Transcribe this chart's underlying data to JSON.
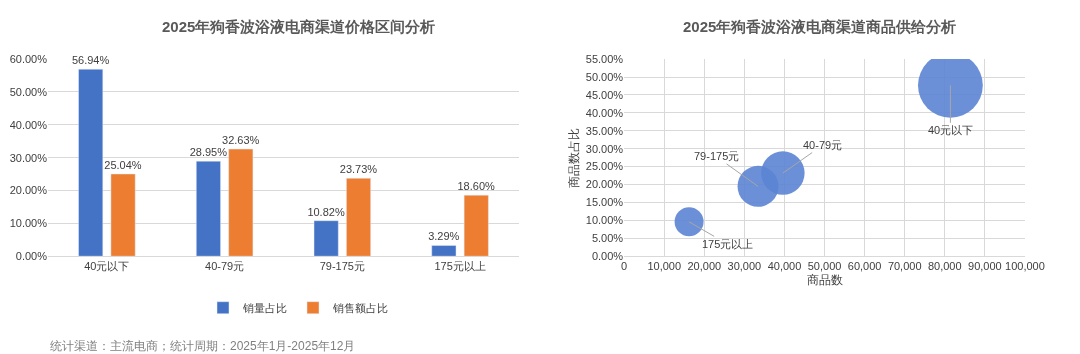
{
  "chart_data": [
    {
      "type": "bar",
      "title": "2025年狗香波浴液电商渠道价格区间分析",
      "categories": [
        "40元以下",
        "40-79元",
        "79-175元",
        "175元以上"
      ],
      "series": [
        {
          "name": "销量占比",
          "color": "#4472c4",
          "values": [
            56.94,
            28.95,
            10.82,
            3.29
          ],
          "value_labels": [
            "56.94%",
            "28.95%",
            "10.82%",
            "3.29%"
          ]
        },
        {
          "name": "销售额占比",
          "color": "#ed7d31",
          "values": [
            25.04,
            32.63,
            23.73,
            18.6
          ],
          "value_labels": [
            "25.04%",
            "32.63%",
            "23.73%",
            "18.60%"
          ]
        }
      ],
      "ylim": [
        0,
        60
      ],
      "yticks": [
        {
          "value": 0,
          "label": "0.00%"
        },
        {
          "value": 10,
          "label": "10.00%"
        },
        {
          "value": 20,
          "label": "20.00%"
        },
        {
          "value": 30,
          "label": "30.00%"
        },
        {
          "value": 40,
          "label": "40.00%"
        },
        {
          "value": 50,
          "label": "50.00%"
        },
        {
          "value": 60,
          "label": "60.00%"
        }
      ],
      "grid": "y",
      "legend": "bottom",
      "annotations": [
        "统计渠道：主流电商；统计周期：2025年1月-2025年12月"
      ]
    },
    {
      "type": "bubble",
      "title": "2025年狗香波浴液电商渠道商品供给分析",
      "xlabel": "商品数",
      "ylabel": "商品数占比",
      "x": [
        81400,
        39600,
        33400,
        16200
      ],
      "values": [
        47.7,
        23.2,
        19.5,
        9.6
      ],
      "sizes": [
        1,
        0.45,
        0.4,
        0.2
      ],
      "color": "#5b84d3",
      "xlim": [
        0,
        100000
      ],
      "xticks": [
        0,
        {
          "value": 10000,
          "label": "10,000"
        },
        {
          "value": 20000,
          "label": "20,000"
        },
        {
          "value": 30000,
          "label": "30,000"
        },
        {
          "value": 40000,
          "label": "40,000"
        },
        {
          "value": 50000,
          "label": "50,000"
        },
        {
          "value": 60000,
          "label": "60,000"
        },
        {
          "value": 70000,
          "label": "70,000"
        },
        {
          "value": 80000,
          "label": "80,000"
        },
        {
          "value": 90000,
          "label": "90,000"
        },
        {
          "value": 100000,
          "label": "100,000"
        }
      ],
      "ylim": [
        0,
        55
      ],
      "yticks": [
        {
          "value": 0,
          "label": "0.00%"
        },
        {
          "value": 5,
          "label": "5.00%"
        },
        {
          "value": 10,
          "label": "10.00%"
        },
        {
          "value": 15,
          "label": "15.00%"
        },
        {
          "value": 20,
          "label": "20.00%"
        },
        {
          "value": 25,
          "label": "25.00%"
        },
        {
          "value": 30,
          "label": "30.00%"
        },
        {
          "value": 35,
          "label": "35.00%"
        },
        {
          "value": 40,
          "label": "40.00%"
        },
        {
          "value": 45,
          "label": "45.00%"
        },
        {
          "value": 50,
          "label": "50.00%"
        },
        {
          "value": 55,
          "label": "55.00%"
        }
      ],
      "grid": true,
      "annotations": [
        {
          "text": "40元以下",
          "x": 81400,
          "y": 47.7
        },
        {
          "text": "40-79元",
          "x": 39600,
          "y": 23.2
        },
        {
          "text": "79-175元",
          "x": 33400,
          "y": 19.5
        },
        {
          "text": "175元以上",
          "x": 16200,
          "y": 9.6
        }
      ]
    }
  ]
}
